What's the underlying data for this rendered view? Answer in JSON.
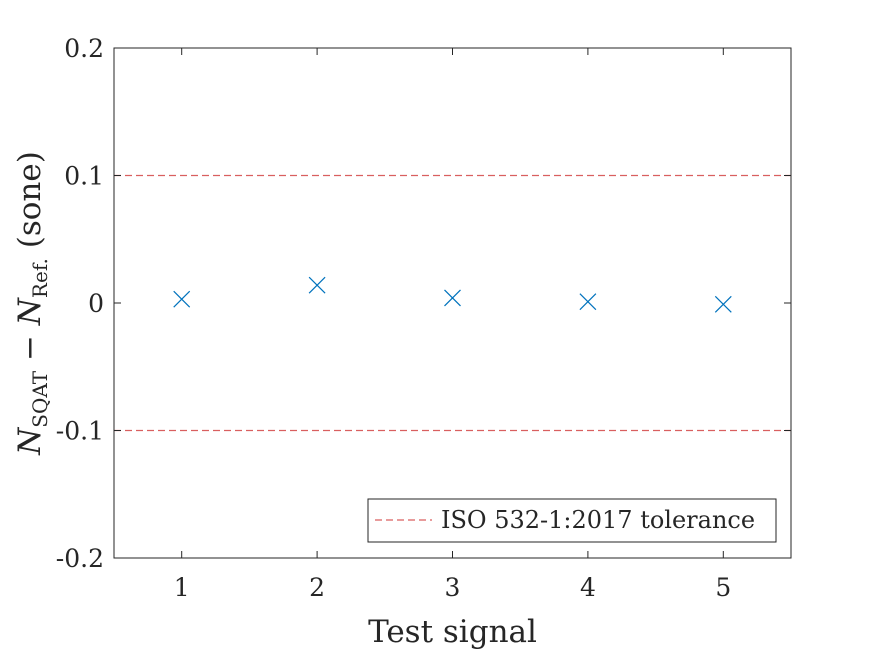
{
  "chart_data": {
    "type": "scatter",
    "xlabel": "Test signal",
    "ylabel": {
      "main": "N",
      "sub1": "SQAT",
      "minus": "−",
      "main2": "N",
      "sub2": "Ref.",
      "unit": "(sone)"
    },
    "xlim": [
      0.5,
      5.5
    ],
    "ylim": [
      -0.2,
      0.2
    ],
    "xticks": [
      1,
      2,
      3,
      4,
      5
    ],
    "xtick_labels": [
      "1",
      "2",
      "3",
      "4",
      "5"
    ],
    "yticks": [
      -0.2,
      -0.1,
      0,
      0.1,
      0.2
    ],
    "ytick_labels": [
      "-0.2",
      "-0.1",
      "0",
      "0.1",
      "0.2"
    ],
    "series": [
      {
        "marker": "x",
        "color": "#0072BD",
        "x": [
          1,
          2,
          3,
          4,
          5
        ],
        "y": [
          0.003,
          0.014,
          0.004,
          0.001,
          -0.001
        ]
      }
    ],
    "reference_lines": [
      {
        "y": 0.1,
        "color": "#D95F5F",
        "style": "dashed"
      },
      {
        "y": -0.1,
        "color": "#D95F5F",
        "style": "dashed"
      }
    ],
    "legend": {
      "position": "bottom-right",
      "entries": [
        {
          "label": "ISO 532-1:2017 tolerance",
          "color": "#D95F5F",
          "style": "dashed"
        }
      ]
    },
    "grid": false
  }
}
